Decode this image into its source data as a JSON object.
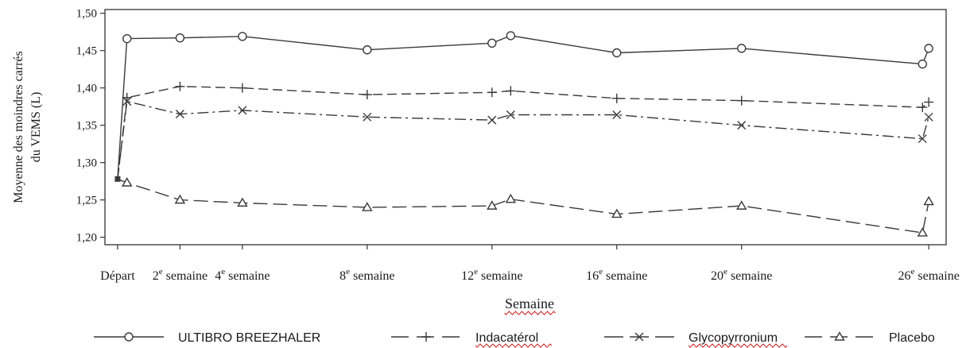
{
  "chart_data": {
    "type": "line",
    "title": "",
    "xlabel": "Semaine",
    "ylabel_lines": [
      "Moyenne des moindres carrés",
      "du VEMS (L)"
    ],
    "ylim": [
      1.19,
      1.505
    ],
    "xlim": [
      -0.1,
      26.2
    ],
    "y_ticks": [
      {
        "value": 1.2,
        "label": "1,20"
      },
      {
        "value": 1.25,
        "label": "1,25"
      },
      {
        "value": 1.3,
        "label": "1,30"
      },
      {
        "value": 1.35,
        "label": "1,35"
      },
      {
        "value": 1.4,
        "label": "1,40"
      },
      {
        "value": 1.45,
        "label": "1,45"
      },
      {
        "value": 1.5,
        "label": "1,50"
      }
    ],
    "x_ticks": [
      {
        "value": 0,
        "label": "Départ",
        "num": "",
        "suffix": ""
      },
      {
        "value": 2,
        "label": "",
        "num": "2",
        "suffix": " semaine"
      },
      {
        "value": 4,
        "label": "",
        "num": "4",
        "suffix": " semaine"
      },
      {
        "value": 8,
        "label": "",
        "num": "8",
        "suffix": " semaine"
      },
      {
        "value": 12,
        "label": "",
        "num": "12",
        "suffix": " semaine"
      },
      {
        "value": 16,
        "label": "",
        "num": "16",
        "suffix": " semaine"
      },
      {
        "value": 20,
        "label": "",
        "num": "20",
        "suffix": " semaine"
      },
      {
        "value": 26,
        "label": "",
        "num": "26",
        "suffix": " semaine"
      }
    ],
    "ordinal_superscript": "e",
    "series": [
      {
        "name": "ULTIBRO BREEZHALER",
        "marker": "circle",
        "dash": "solid",
        "x": [
          0,
          0.3,
          2,
          4,
          8,
          12,
          12.6,
          16,
          20,
          25.8,
          26
        ],
        "y": [
          1.278,
          1.466,
          1.467,
          1.469,
          1.451,
          1.46,
          1.47,
          1.447,
          1.453,
          1.432,
          1.453
        ]
      },
      {
        "name": "Indacatérol",
        "marker": "plus",
        "dash": "dashed",
        "x": [
          0,
          0.3,
          2,
          4,
          8,
          12,
          12.6,
          16,
          20,
          25.8,
          26
        ],
        "y": [
          1.278,
          1.387,
          1.402,
          1.4,
          1.391,
          1.394,
          1.396,
          1.386,
          1.383,
          1.374,
          1.381
        ]
      },
      {
        "name": "Glycopyrronium",
        "marker": "x",
        "dash": "dashdot",
        "x": [
          0,
          0.3,
          2,
          4,
          8,
          12,
          12.6,
          16,
          20,
          25.8,
          26
        ],
        "y": [
          1.278,
          1.382,
          1.365,
          1.37,
          1.361,
          1.357,
          1.364,
          1.364,
          1.35,
          1.332,
          1.361
        ]
      },
      {
        "name": "Placebo",
        "marker": "triangle",
        "dash": "longdash",
        "x": [
          0,
          0.3,
          2,
          4,
          8,
          12,
          12.6,
          16,
          20,
          25.8,
          26
        ],
        "y": [
          1.278,
          1.273,
          1.25,
          1.246,
          1.24,
          1.242,
          1.251,
          1.231,
          1.242,
          1.206,
          1.248
        ]
      }
    ],
    "legend": {
      "placement": "bottom"
    },
    "grid": false,
    "colors": {
      "line": "#3a3a3a",
      "text": "#1a1a1a",
      "spell_underline": "#d02020"
    }
  }
}
